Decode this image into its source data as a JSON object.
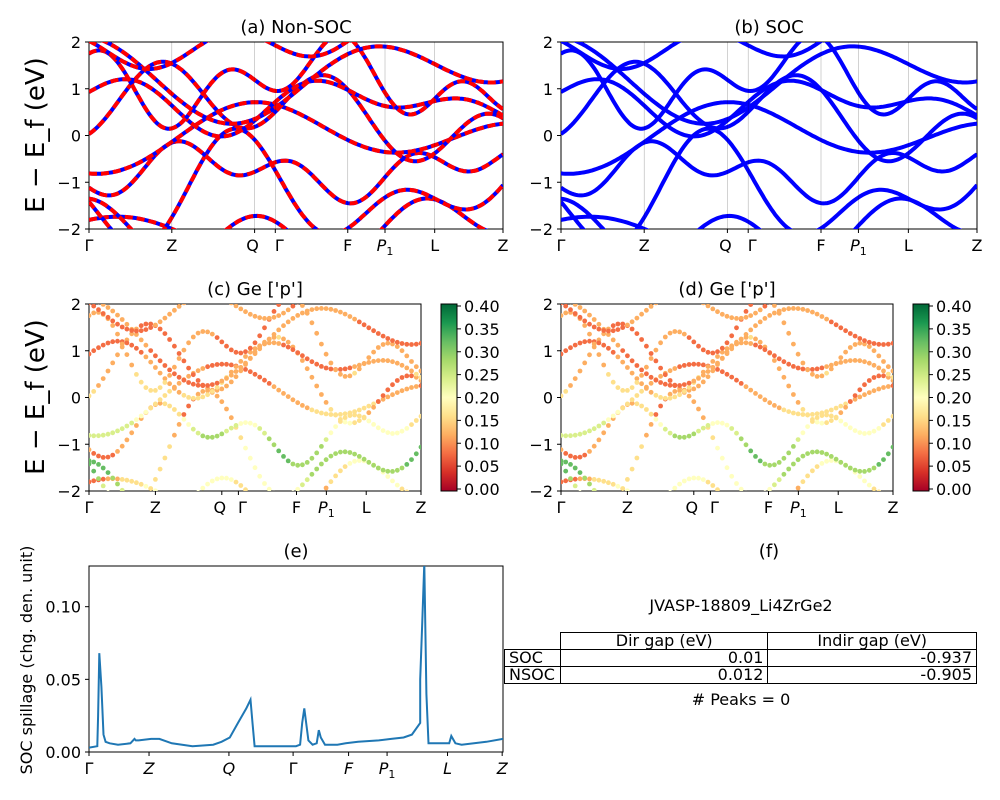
{
  "panels": {
    "a": {
      "title": "(a) Non-SOC"
    },
    "b": {
      "title": "(b) SOC"
    },
    "c": {
      "title": "(c)  Ge ['p']"
    },
    "d": {
      "title": "(d) Ge ['p']"
    },
    "e": {
      "title": "(e)"
    },
    "f": {
      "title": "(f)"
    }
  },
  "band_ylabel": "E − E_f (eV)",
  "band_yticks": [
    "2",
    "1",
    "0",
    "−1",
    "−2"
  ],
  "kpath": [
    "Γ",
    "Z",
    "Q",
    "Γ",
    "F",
    "P1",
    "L",
    "Z"
  ],
  "colorbar_ticks": [
    "0.40",
    "0.35",
    "0.30",
    "0.25",
    "0.20",
    "0.15",
    "0.10",
    "0.05",
    "0.00"
  ],
  "colors": {
    "blue": "#0000ff",
    "red": "#ff0000",
    "spillage": "#1f77b4"
  },
  "chart_data": [
    {
      "type": "line",
      "title": "(e)",
      "ylabel": "SOC spillage (chg. den. unit)",
      "x_ticks": [
        "Γ",
        "Z",
        "Q",
        "Γ",
        "F",
        "P1",
        "L",
        "Z"
      ],
      "y_ticks": [
        "0.00",
        "0.05",
        "0.10"
      ],
      "ylim": [
        0,
        0.128
      ],
      "x": [
        0,
        0.02,
        0.022,
        0.025,
        0.03,
        0.035,
        0.04,
        0.05,
        0.07,
        0.1,
        0.11,
        0.113,
        0.12,
        0.15,
        0.17,
        0.2,
        0.25,
        0.3,
        0.32,
        0.34,
        0.36,
        0.38,
        0.39,
        0.395,
        0.4,
        0.42,
        0.45,
        0.48,
        0.5,
        0.51,
        0.515,
        0.52,
        0.53,
        0.54,
        0.55,
        0.555,
        0.56,
        0.57,
        0.6,
        0.62,
        0.65,
        0.7,
        0.73,
        0.76,
        0.78,
        0.8,
        0.8,
        0.8,
        0.805,
        0.81,
        0.815,
        0.82,
        0.84,
        0.86,
        0.87,
        0.875,
        0.885,
        0.9,
        0.93,
        0.96,
        1.0
      ],
      "series": [
        {
          "values": [
            0.003,
            0.004,
            0.025,
            0.068,
            0.045,
            0.012,
            0.007,
            0.006,
            0.005,
            0.006,
            0.009,
            0.008,
            0.008,
            0.009,
            0.009,
            0.006,
            0.004,
            0.005,
            0.007,
            0.01,
            0.02,
            0.03,
            0.036,
            0.02,
            0.004,
            0.004,
            0.004,
            0.004,
            0.004,
            0.005,
            0.02,
            0.03,
            0.008,
            0.005,
            0.006,
            0.015,
            0.01,
            0.005,
            0.005,
            0.006,
            0.007,
            0.008,
            0.009,
            0.01,
            0.012,
            0.02,
            0.03,
            0.05,
            0.09,
            0.13,
            0.04,
            0.006,
            0.006,
            0.006,
            0.006,
            0.011,
            0.006,
            0.005,
            0.006,
            0.007,
            0.009
          ]
        }
      ]
    }
  ],
  "gap_table": {
    "title": "JVASP-18809_Li4ZrGe2",
    "headers": [
      "",
      "Dir gap (eV)",
      "Indir gap (eV)"
    ],
    "rows": [
      [
        "SOC",
        "0.01",
        "-0.937"
      ],
      [
        "NSOC",
        "0.012",
        "-0.905"
      ]
    ],
    "footer": "# Peaks = 0"
  }
}
